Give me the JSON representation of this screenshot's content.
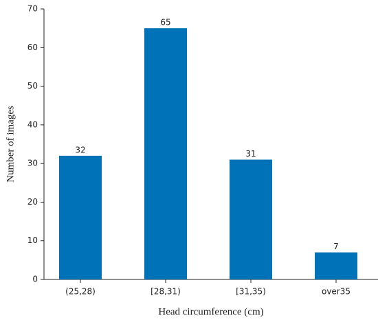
{
  "chart_data": {
    "type": "bar",
    "x_label": "Head circumference (cm)",
    "y_label": "Number of images",
    "categories": [
      "(25,28)",
      "[28,31)",
      "[31,35)",
      "over35"
    ],
    "values": [
      32,
      65,
      31,
      7
    ],
    "color": "#0072b8",
    "ylim": [
      0,
      70
    ],
    "yticks": [
      0,
      10,
      20,
      30,
      40,
      50,
      60,
      70
    ],
    "grid": false,
    "data_labels": true
  }
}
